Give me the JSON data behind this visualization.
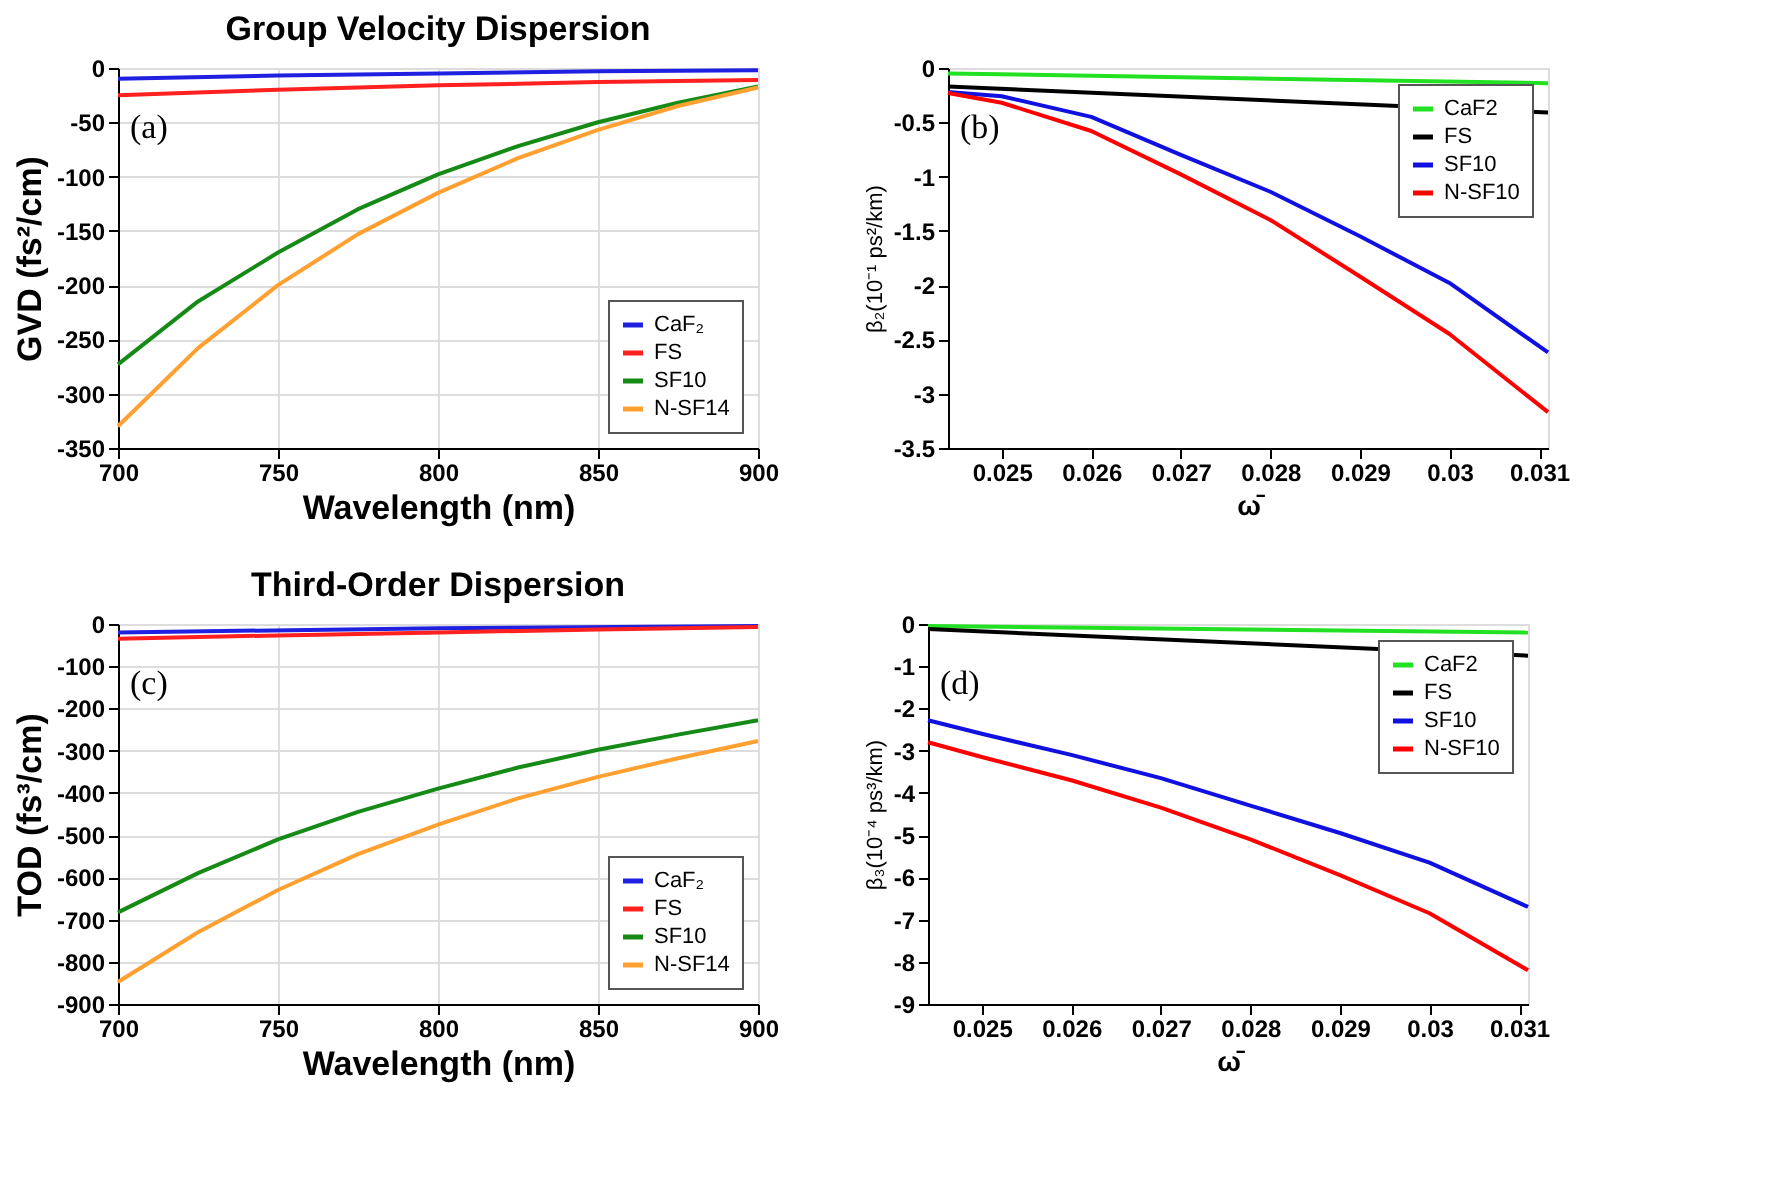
{
  "chart_data": [
    {
      "type": "line",
      "title": "Group Velocity Dispersion",
      "xlabel": "Wavelength (nm)",
      "ylabel": "GVD (fs²/cm)",
      "xlim": [
        700,
        900
      ],
      "xticks": [
        700,
        750,
        800,
        850,
        900
      ],
      "ylim": [
        -350,
        0
      ],
      "yticks": [
        -350,
        -300,
        -250,
        -200,
        -150,
        -100,
        -50,
        0
      ],
      "grid": true,
      "legend": "bottom right",
      "annotations": [
        "(a)"
      ],
      "series": [
        {
          "name": "CaF₂",
          "color": "#2020e0",
          "x": [
            700,
            750,
            800,
            850,
            900
          ],
          "values": [
            -10,
            -7,
            -5,
            -3,
            -2
          ]
        },
        {
          "name": "FS",
          "color": "#ff2020",
          "x": [
            700,
            750,
            800,
            850,
            900
          ],
          "values": [
            -25,
            -20,
            -16,
            -13,
            -11
          ]
        },
        {
          "name": "SF10",
          "color": "#168a16",
          "x": [
            700,
            725,
            750,
            775,
            800,
            825,
            850,
            875,
            900
          ],
          "values": [
            -273,
            -215,
            -170,
            -130,
            -98,
            -72,
            -50,
            -32,
            -17
          ]
        },
        {
          "name": "N-SF14",
          "color": "#ffa030",
          "x": [
            700,
            725,
            750,
            775,
            800,
            825,
            850,
            875,
            900
          ],
          "values": [
            -330,
            -258,
            -200,
            -153,
            -115,
            -83,
            -57,
            -35,
            -18
          ]
        }
      ]
    },
    {
      "type": "line",
      "xlabel": "ω̄",
      "ylabel": "β₂(10⁻¹ ps²/km)",
      "xlim": [
        0.0244,
        0.0311
      ],
      "xticks": [
        0.025,
        0.026,
        0.027,
        0.028,
        0.029,
        0.03,
        0.031
      ],
      "ylim": [
        -3.5,
        0
      ],
      "yticks": [
        -3.5,
        -3,
        -2.5,
        -2,
        -1.5,
        -1,
        -0.5,
        0
      ],
      "grid": false,
      "legend": "top right",
      "annotations": [
        "(b)"
      ],
      "series": [
        {
          "name": "CaF2",
          "color": "#22e022",
          "x": [
            0.0244,
            0.0311
          ],
          "values": [
            -0.05,
            -0.14
          ]
        },
        {
          "name": "FS",
          "color": "#000000",
          "x": [
            0.0244,
            0.0311
          ],
          "values": [
            -0.17,
            -0.41
          ]
        },
        {
          "name": "SF10",
          "color": "#1010e0",
          "x": [
            0.0244,
            0.025,
            0.026,
            0.027,
            0.028,
            0.029,
            0.03,
            0.0311
          ],
          "values": [
            -0.22,
            -0.26,
            -0.45,
            -0.8,
            -1.14,
            -1.55,
            -1.98,
            -2.62
          ]
        },
        {
          "name": "N-SF10",
          "color": "#ff0000",
          "x": [
            0.0244,
            0.025,
            0.026,
            0.027,
            0.028,
            0.029,
            0.03,
            0.0311
          ],
          "values": [
            -0.23,
            -0.32,
            -0.58,
            -0.98,
            -1.4,
            -1.92,
            -2.45,
            -3.17
          ]
        }
      ]
    },
    {
      "type": "line",
      "title": "Third-Order Dispersion",
      "xlabel": "Wavelength (nm)",
      "ylabel": "TOD (fs³/cm)",
      "xlim": [
        700,
        900
      ],
      "xticks": [
        700,
        750,
        800,
        850,
        900
      ],
      "ylim": [
        -900,
        0
      ],
      "yticks": [
        -900,
        -800,
        -700,
        -600,
        -500,
        -400,
        -300,
        -200,
        -100,
        0
      ],
      "grid": true,
      "legend": "bottom right",
      "annotations": [
        "(c)"
      ],
      "series": [
        {
          "name": "CaF₂",
          "color": "#2020e0",
          "x": [
            700,
            800,
            900
          ],
          "values": [
            -20,
            -10,
            -5
          ]
        },
        {
          "name": "FS",
          "color": "#ff2020",
          "x": [
            700,
            750,
            800,
            850,
            900
          ],
          "values": [
            -35,
            -27,
            -20,
            -13,
            -7
          ]
        },
        {
          "name": "SF10",
          "color": "#168a16",
          "x": [
            700,
            725,
            750,
            775,
            800,
            825,
            850,
            875,
            900
          ],
          "values": [
            -683,
            -590,
            -510,
            -445,
            -390,
            -340,
            -298,
            -262,
            -228
          ]
        },
        {
          "name": "N-SF14",
          "color": "#ffa030",
          "x": [
            700,
            725,
            750,
            775,
            800,
            825,
            850,
            875,
            900
          ],
          "values": [
            -848,
            -730,
            -630,
            -545,
            -475,
            -413,
            -362,
            -318,
            -277
          ]
        }
      ]
    },
    {
      "type": "line",
      "xlabel": "ω̄",
      "ylabel": "β₃(10⁻⁴ ps³/km)",
      "xlim": [
        0.0244,
        0.0311
      ],
      "xticks": [
        0.025,
        0.026,
        0.027,
        0.028,
        0.029,
        0.03,
        0.031
      ],
      "ylim": [
        -9,
        0
      ],
      "yticks": [
        -9,
        -8,
        -7,
        -6,
        -5,
        -4,
        -3,
        -2,
        -1,
        0
      ],
      "grid": false,
      "legend": "top right",
      "annotations": [
        "(d)"
      ],
      "series": [
        {
          "name": "CaF2",
          "color": "#22e022",
          "x": [
            0.0244,
            0.0311
          ],
          "values": [
            -0.05,
            -0.2
          ]
        },
        {
          "name": "FS",
          "color": "#000000",
          "x": [
            0.0244,
            0.0311
          ],
          "values": [
            -0.12,
            -0.75
          ]
        },
        {
          "name": "SF10",
          "color": "#1010e0",
          "x": [
            0.0244,
            0.025,
            0.026,
            0.027,
            0.028,
            0.029,
            0.03,
            0.0311
          ],
          "values": [
            -2.28,
            -2.6,
            -3.1,
            -3.65,
            -4.3,
            -4.95,
            -5.65,
            -6.7
          ]
        },
        {
          "name": "N-SF10",
          "color": "#ff0000",
          "x": [
            0.0244,
            0.025,
            0.026,
            0.027,
            0.028,
            0.029,
            0.03,
            0.0311
          ],
          "values": [
            -2.8,
            -3.15,
            -3.7,
            -4.35,
            -5.1,
            -5.95,
            -6.85,
            -8.2
          ]
        }
      ]
    }
  ]
}
